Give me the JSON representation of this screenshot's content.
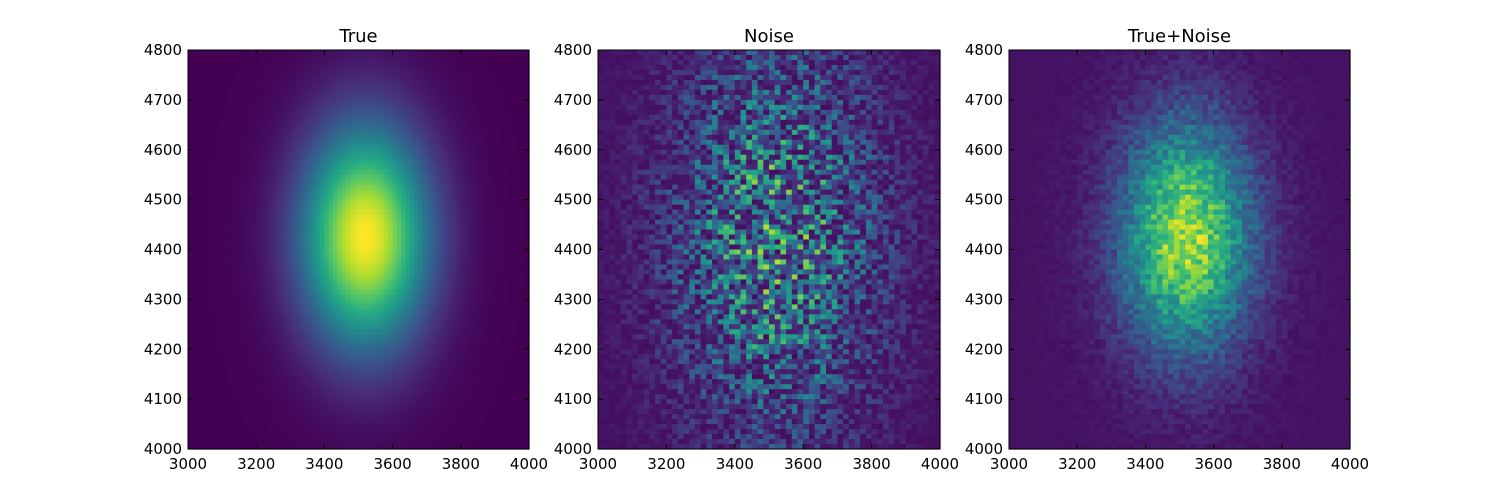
{
  "chart_data": [
    {
      "type": "heatmap",
      "title": "True",
      "xlim": [
        3000,
        4000
      ],
      "ylim": [
        4000,
        4800
      ],
      "x_ticks": [
        3000,
        3200,
        3400,
        3600,
        3800,
        4000
      ],
      "y_ticks": [
        4000,
        4100,
        4200,
        4300,
        4400,
        4500,
        4600,
        4700,
        4800
      ],
      "colormap": "viridis",
      "grid": false,
      "bins": [
        80,
        80
      ],
      "model": {
        "kind": "gaussian",
        "center": [
          3520,
          4425
        ],
        "sigma": [
          130,
          155
        ],
        "noise": 0
      },
      "colors": {
        "frame": "#000000",
        "background": "#440154"
      }
    },
    {
      "type": "heatmap",
      "title": "Noise",
      "xlim": [
        3000,
        4000
      ],
      "ylim": [
        4000,
        4800
      ],
      "x_ticks": [
        3000,
        3200,
        3400,
        3600,
        3800,
        4000
      ],
      "y_ticks": [
        4000,
        4100,
        4200,
        4300,
        4400,
        4500,
        4600,
        4700,
        4800
      ],
      "colormap": "viridis",
      "grid": false,
      "bins": [
        60,
        80
      ],
      "model": {
        "kind": "noise",
        "center": [
          3520,
          4425
        ],
        "sigma": [
          150,
          200
        ],
        "noise": 1
      },
      "colors": {
        "frame": "#000000",
        "background": "#440154"
      }
    },
    {
      "type": "heatmap",
      "title": "True+Noise",
      "xlim": [
        3000,
        4000
      ],
      "ylim": [
        4000,
        4800
      ],
      "x_ticks": [
        3000,
        3200,
        3400,
        3600,
        3800,
        4000
      ],
      "y_ticks": [
        4000,
        4100,
        4200,
        4300,
        4400,
        4500,
        4600,
        4700,
        4800
      ],
      "colormap": "viridis",
      "grid": false,
      "bins": [
        60,
        80
      ],
      "model": {
        "kind": "gaussian_noise",
        "center": [
          3520,
          4425
        ],
        "sigma": [
          130,
          155
        ],
        "noise": 0.35
      },
      "colors": {
        "frame": "#000000",
        "background": "#440154"
      }
    }
  ]
}
